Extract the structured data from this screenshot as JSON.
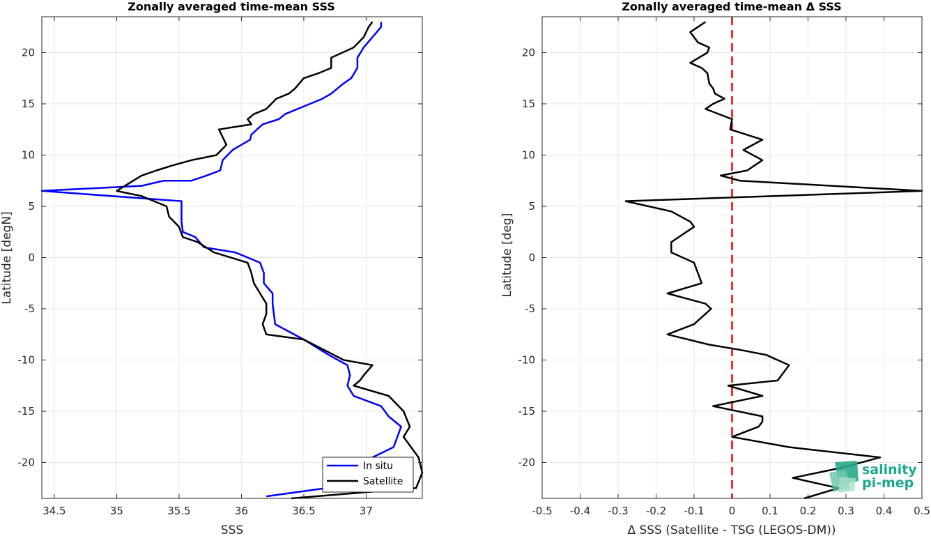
{
  "chart_data": [
    {
      "type": "line",
      "title": "Zonally averaged time-mean SSS",
      "xlabel": "SSS",
      "ylabel": "Latitude [degN]",
      "xlim": [
        34.4,
        37.45
      ],
      "ylim": [
        -23.5,
        23.5
      ],
      "xticks": [
        34.5,
        35,
        35.5,
        36,
        36.5,
        37
      ],
      "xtick_labels": [
        "34.5",
        "35",
        "35.5",
        "36",
        "36.5",
        "37"
      ],
      "yticks": [
        -20,
        -15,
        -10,
        -5,
        0,
        5,
        10,
        15,
        20
      ],
      "ytick_labels": [
        "-20",
        "-15",
        "-10",
        "-5",
        "0",
        "5",
        "10",
        "15",
        "20"
      ],
      "grid": true,
      "legend": "bottom-right",
      "series": [
        {
          "name": "In situ",
          "color": "#0000ff",
          "x": [
            37.12,
            37.12,
            37.05,
            36.98,
            36.93,
            36.93,
            36.88,
            36.82,
            36.72,
            36.65,
            36.55,
            36.45,
            36.35,
            36.3,
            36.17,
            36.08,
            36.07,
            35.93,
            35.85,
            35.83,
            35.72,
            35.6,
            35.38,
            35.2,
            34.4,
            35.52,
            35.52,
            35.52,
            35.53,
            35.63,
            35.7,
            35.95,
            36.15,
            36.18,
            36.18,
            36.25,
            36.25,
            36.26,
            36.27,
            36.5,
            36.7,
            36.85,
            36.87,
            36.85,
            36.9,
            37.12,
            37.18,
            37.28,
            37.22,
            37.05,
            36.68,
            36.2
          ],
          "y": [
            23,
            22.5,
            21.5,
            20.5,
            19.5,
            18.5,
            17.5,
            17.0,
            16.0,
            15.5,
            15.0,
            14.5,
            14.0,
            13.5,
            13.0,
            12.0,
            11.5,
            10.5,
            9.5,
            8.5,
            8.0,
            7.5,
            7.5,
            7.0,
            6.5,
            5.5,
            4.5,
            3.5,
            2.5,
            2.0,
            1.0,
            0.5,
            -0.5,
            -1.5,
            -2.5,
            -3.5,
            -4.5,
            -5.5,
            -6.5,
            -8.0,
            -9.5,
            -10.5,
            -11.5,
            -12.5,
            -13.5,
            -14.5,
            -15.5,
            -16.5,
            -18.5,
            -19.5,
            -22.5,
            -23.3
          ]
        },
        {
          "name": "Satellite",
          "color": "#000000",
          "x": [
            37.05,
            37.02,
            36.98,
            36.9,
            36.72,
            36.72,
            36.62,
            36.5,
            36.43,
            36.38,
            36.28,
            36.2,
            36.1,
            36.05,
            36.08,
            35.82,
            35.88,
            35.8,
            35.6,
            35.45,
            35.32,
            35.2,
            35.0,
            35.2,
            35.4,
            35.42,
            35.5,
            35.53,
            35.65,
            35.78,
            36.05,
            36.08,
            36.1,
            36.15,
            36.2,
            36.2,
            36.17,
            36.2,
            36.5,
            36.82,
            37.05,
            36.98,
            36.95,
            36.9,
            37.18,
            37.22,
            37.3,
            37.35,
            37.3,
            37.42,
            37.45,
            37.4,
            36.4
          ],
          "y": [
            23,
            22.5,
            21.5,
            20.5,
            19.5,
            18.5,
            18.0,
            17.5,
            16.5,
            16.0,
            15.5,
            14.5,
            14.0,
            13.5,
            13.0,
            12.5,
            11.0,
            10.0,
            9.5,
            9.0,
            8.5,
            8.0,
            6.5,
            6.0,
            5.0,
            4.0,
            3.0,
            2.0,
            1.5,
            0.5,
            -0.5,
            -1.5,
            -2.5,
            -3.5,
            -4.5,
            -5.5,
            -6.5,
            -7.5,
            -8.0,
            -10.0,
            -10.5,
            -11.5,
            -12.0,
            -12.5,
            -13.5,
            -14.0,
            -15.0,
            -16.5,
            -17.5,
            -19.5,
            -21.0,
            -22.5,
            -23.5
          ]
        }
      ]
    },
    {
      "type": "line",
      "title": "Zonally averaged time-mean Δ SSS",
      "xlabel": "Δ SSS (Satellite - TSG (LEGOS-DM))",
      "ylabel": "Latitude [deg]",
      "xlim": [
        -0.5,
        0.5
      ],
      "ylim": [
        -23.5,
        23.5
      ],
      "xticks": [
        -0.5,
        -0.4,
        -0.3,
        -0.2,
        -0.1,
        0,
        0.1,
        0.2,
        0.3,
        0.4,
        0.5
      ],
      "xtick_labels": [
        "-0.5",
        "-0.4",
        "-0.3",
        "-0.2",
        "-0.1",
        "0",
        "0.1",
        "0.2",
        "0.3",
        "0.4",
        "0.5"
      ],
      "yticks": [
        -20,
        -15,
        -10,
        -5,
        0,
        5,
        10,
        15,
        20
      ],
      "ytick_labels": [
        "-20",
        "-15",
        "-10",
        "-5",
        "0",
        "5",
        "10",
        "15",
        "20"
      ],
      "grid": true,
      "zero_line": {
        "x": 0,
        "color": "#ff0000",
        "style": "dashed"
      },
      "series": [
        {
          "color": "#000000",
          "x": [
            -0.07,
            -0.11,
            -0.09,
            -0.06,
            -0.065,
            -0.11,
            -0.08,
            -0.065,
            -0.06,
            -0.05,
            -0.045,
            -0.02,
            -0.05,
            -0.07,
            0.0,
            -0.005,
            0.08,
            0.03,
            0.08,
            0.04,
            -0.03,
            0.02,
            0.5,
            -0.28,
            -0.16,
            -0.11,
            -0.1,
            -0.12,
            -0.16,
            -0.16,
            -0.1,
            -0.08,
            -0.17,
            -0.07,
            -0.055,
            -0.1,
            -0.17,
            -0.06,
            0.02,
            0.09,
            0.15,
            0.14,
            0.12,
            -0.01,
            0.08,
            -0.05,
            0.08,
            0.08,
            0.07,
            0.0,
            0.15,
            0.39,
            0.29,
            0.16,
            0.28,
            0.19
          ],
          "y": [
            23.0,
            22.0,
            21.0,
            20.5,
            20.0,
            19.0,
            18.5,
            18.0,
            17.0,
            16.5,
            16.0,
            15.5,
            15.0,
            14.5,
            13.5,
            12.5,
            11.5,
            10.5,
            9.5,
            8.5,
            8.0,
            7.5,
            6.5,
            5.5,
            4.5,
            3.5,
            3.0,
            2.5,
            1.5,
            0.5,
            -0.5,
            -2.5,
            -3.5,
            -4.5,
            -5.0,
            -6.5,
            -7.5,
            -8.5,
            -9.0,
            -9.5,
            -10.5,
            -11.0,
            -12.0,
            -12.5,
            -13.5,
            -14.5,
            -15.5,
            -16.0,
            -16.5,
            -17.5,
            -18.5,
            -19.5,
            -20.5,
            -21.5,
            -22.5,
            -23.5
          ]
        }
      ]
    }
  ],
  "legend": {
    "in_situ": "In situ",
    "satellite": "Satellite"
  },
  "logo": {
    "line1": "salinity",
    "line2": "pi-mep",
    "color": "#1aa88f"
  }
}
